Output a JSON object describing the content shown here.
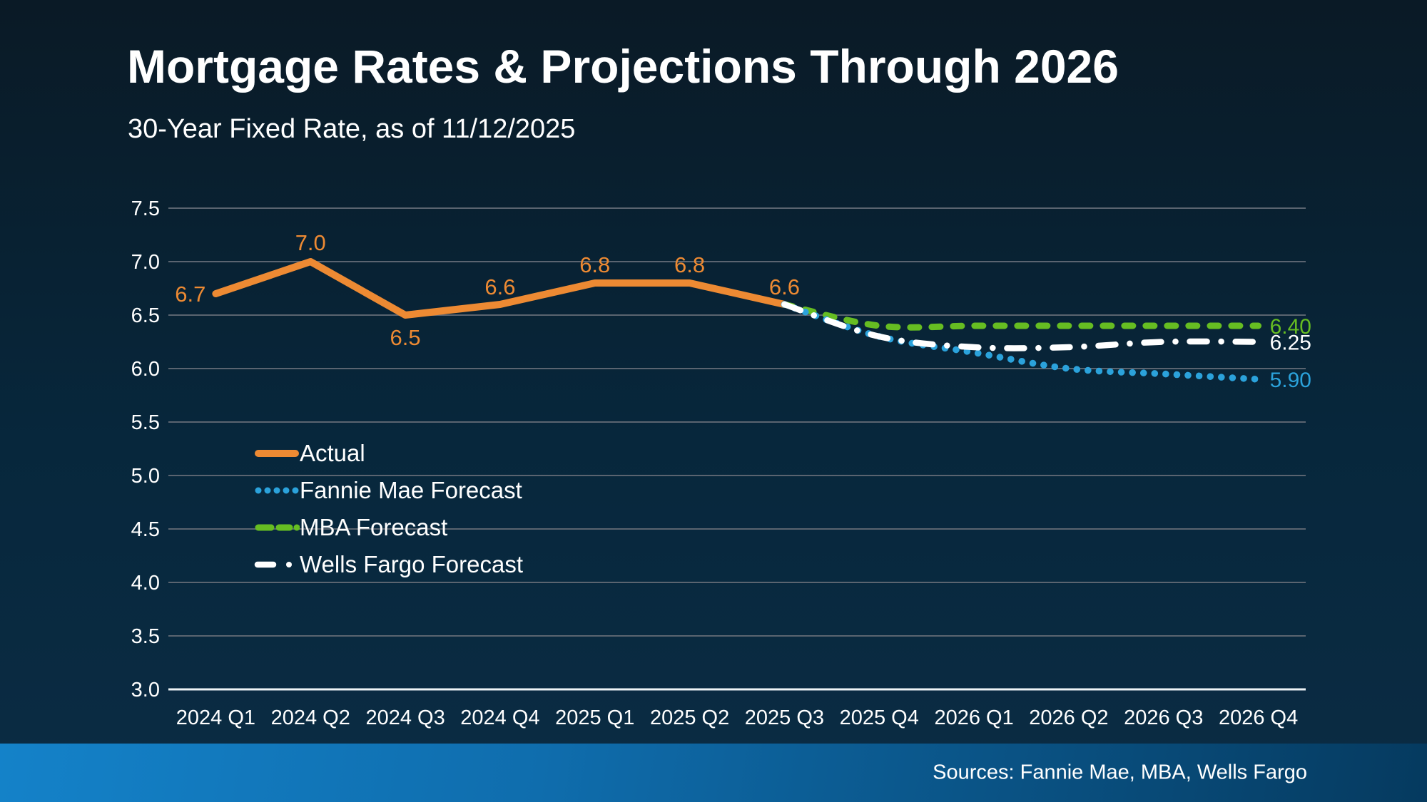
{
  "chart_data": {
    "type": "line",
    "title": "Mortgage Rates & Projections Through 2026",
    "subtitle": "30-Year Fixed Rate, as of 11/12/2025",
    "categories": [
      "2024 Q1",
      "2024 Q2",
      "2024 Q3",
      "2024 Q4",
      "2025 Q1",
      "2025 Q2",
      "2025 Q3",
      "2025 Q4",
      "2026 Q1",
      "2026 Q2",
      "2026 Q3",
      "2026 Q4"
    ],
    "ylim": [
      3.0,
      7.5
    ],
    "y_tick_labels": [
      "7.5",
      "7.0",
      "6.5",
      "6.0",
      "5.5",
      "5.0",
      "4.5",
      "4.0",
      "3.5",
      "3.0"
    ],
    "grid": true,
    "legend_position": "inside-left-middle",
    "colors": {
      "background_top": "#0a1a26",
      "background_bottom": "#0b2c44",
      "gridline": "#5a6470",
      "axis_line": "#eef3f6",
      "text": "#ffffff"
    },
    "series": [
      {
        "name": "Actual",
        "color": "#ED8A33",
        "style": "solid",
        "start_index": 0,
        "values": [
          6.7,
          7.0,
          6.5,
          6.6,
          6.8,
          6.8,
          6.6
        ],
        "point_labels": [
          "6.7",
          "7.0",
          "6.5",
          "6.6",
          "6.8",
          "6.8",
          "6.6"
        ]
      },
      {
        "name": "Fannie Mae Forecast",
        "color": "#2BA2DB",
        "style": "dotted",
        "start_index": 6,
        "values": [
          6.6,
          6.3,
          6.15,
          6.0,
          5.95,
          5.9
        ],
        "end_label": "5.90"
      },
      {
        "name": "MBA Forecast",
        "color": "#66BD22",
        "style": "dashed",
        "start_index": 6,
        "values": [
          6.6,
          6.4,
          6.4,
          6.4,
          6.4,
          6.4
        ],
        "end_label": "6.40"
      },
      {
        "name": "Wells Fargo Forecast",
        "color": "#FFFFFF",
        "style": "dash-dot",
        "start_index": 6,
        "values": [
          6.6,
          6.3,
          6.2,
          6.2,
          6.25,
          6.25
        ],
        "end_label": "6.25"
      }
    ]
  },
  "footer": {
    "sources": "Sources: Fannie Mae, MBA, Wells Fargo"
  }
}
